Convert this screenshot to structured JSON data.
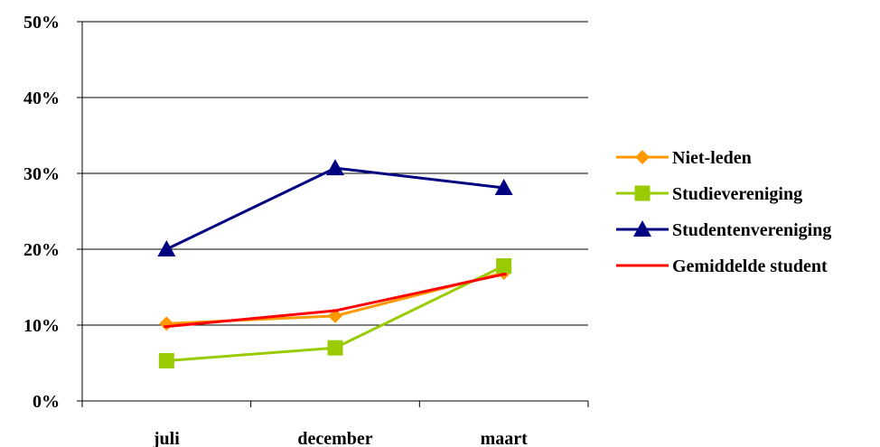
{
  "chart_data": {
    "type": "line",
    "title": "",
    "xlabel": "",
    "ylabel": "",
    "categories": [
      "juli",
      "december",
      "maart"
    ],
    "ylim": [
      0,
      50
    ],
    "yticks": [
      "0%",
      "10%",
      "20%",
      "30%",
      "40%",
      "50%"
    ],
    "grid": true,
    "legend_position": "right",
    "series": [
      {
        "name": "Niet-leden",
        "values": [
          10.2,
          11.2,
          16.9
        ],
        "color": "#FF9900",
        "marker": "diamond"
      },
      {
        "name": "Studievereniging",
        "values": [
          5.3,
          7.0,
          17.8
        ],
        "color": "#99CC00",
        "marker": "square"
      },
      {
        "name": "Studentenvereniging",
        "values": [
          20.0,
          30.7,
          28.1
        ],
        "color": "#000080",
        "marker": "triangle"
      },
      {
        "name": "Gemiddelde student",
        "values": [
          9.8,
          11.9,
          16.7
        ],
        "color": "#FF0000",
        "marker": "dash"
      }
    ]
  }
}
